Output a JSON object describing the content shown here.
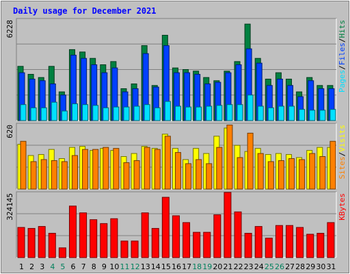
{
  "title": "Daily usage for December 2021",
  "colors": {
    "title": "#0000ff",
    "background": "#c0c0c0",
    "hits": "#008040",
    "files": "#0040ff",
    "pages": "#00e0ff",
    "visits": "#ffff00",
    "sites": "#ff8000",
    "kbytes": "#ff0000",
    "weekend": "#00805c",
    "weekday": "#000000"
  },
  "chart_data": [
    {
      "type": "bar",
      "panel": "hits-files-pages",
      "y_max_label": "6228",
      "ylim": [
        0,
        6228
      ],
      "legend": [
        "Pages",
        "/",
        "Files",
        "/",
        "Hits"
      ],
      "categories": [
        "1",
        "2",
        "3",
        "4",
        "5",
        "6",
        "7",
        "8",
        "9",
        "10",
        "11",
        "12",
        "13",
        "14",
        "15",
        "16",
        "17",
        "18",
        "19",
        "20",
        "21",
        "22",
        "23",
        "24",
        "25",
        "26",
        "27",
        "28",
        "29",
        "30",
        "31"
      ],
      "weekend_days": [
        4,
        5,
        11,
        12,
        18,
        19,
        25,
        26
      ],
      "series": [
        {
          "name": "Hits",
          "values": [
            3400,
            2900,
            2700,
            3400,
            1800,
            4450,
            4300,
            3900,
            3500,
            3700,
            2000,
            2300,
            4700,
            2200,
            5350,
            3300,
            3200,
            3100,
            2700,
            2500,
            3100,
            3700,
            6050,
            3900,
            2600,
            3000,
            2600,
            1800,
            2700,
            2200,
            2200
          ]
        },
        {
          "name": "Files",
          "values": [
            3000,
            2600,
            2500,
            2300,
            1600,
            4100,
            3900,
            3500,
            3000,
            3300,
            1800,
            2000,
            4200,
            2100,
            4700,
            3000,
            3000,
            2900,
            2300,
            2400,
            3000,
            3500,
            4500,
            3600,
            2200,
            2600,
            2200,
            1500,
            2500,
            2000,
            2000
          ]
        },
        {
          "name": "Pages",
          "values": [
            1000,
            800,
            800,
            1150,
            600,
            1050,
            1000,
            950,
            800,
            850,
            850,
            900,
            1000,
            800,
            1200,
            900,
            850,
            850,
            900,
            950,
            1000,
            1000,
            1600,
            900,
            800,
            900,
            900,
            700,
            650,
            650,
            700
          ]
        }
      ]
    },
    {
      "type": "bar",
      "panel": "visits-sites",
      "y_max_label": "620",
      "ylim": [
        0,
        620
      ],
      "legend": [
        "Sites",
        "/",
        "Visits"
      ],
      "categories": [
        "1",
        "2",
        "3",
        "4",
        "5",
        "6",
        "7",
        "8",
        "9",
        "10",
        "11",
        "12",
        "13",
        "14",
        "15",
        "16",
        "17",
        "18",
        "19",
        "20",
        "21",
        "22",
        "23",
        "24",
        "25",
        "26",
        "27",
        "28",
        "29",
        "30",
        "31"
      ],
      "weekend_days": [
        4,
        5,
        11,
        12,
        18,
        19,
        25,
        26
      ],
      "series": [
        {
          "name": "Visits",
          "values": [
            440,
            330,
            340,
            390,
            300,
            410,
            420,
            380,
            400,
            380,
            320,
            350,
            420,
            400,
            540,
            400,
            290,
            400,
            350,
            520,
            600,
            430,
            370,
            400,
            340,
            350,
            340,
            310,
            380,
            410,
            410
          ]
        },
        {
          "name": "Sites",
          "values": [
            470,
            270,
            290,
            280,
            270,
            330,
            390,
            390,
            410,
            400,
            260,
            280,
            410,
            390,
            520,
            360,
            250,
            290,
            250,
            410,
            630,
            310,
            550,
            350,
            270,
            280,
            300,
            290,
            350,
            320,
            470
          ]
        }
      ]
    },
    {
      "type": "bar",
      "panel": "kbytes",
      "y_max_label": "324145",
      "ylim": [
        0,
        324145
      ],
      "legend": [
        "KBytes"
      ],
      "categories": [
        "1",
        "2",
        "3",
        "4",
        "5",
        "6",
        "7",
        "8",
        "9",
        "10",
        "11",
        "12",
        "13",
        "14",
        "15",
        "16",
        "17",
        "18",
        "19",
        "20",
        "21",
        "22",
        "23",
        "24",
        "25",
        "26",
        "27",
        "28",
        "29",
        "30",
        "31"
      ],
      "weekend_days": [
        4,
        5,
        11,
        12,
        18,
        19,
        25,
        26
      ],
      "series": [
        {
          "name": "KBytes",
          "values": [
            155000,
            150000,
            160000,
            125000,
            50000,
            265000,
            230000,
            195000,
            175000,
            200000,
            85000,
            85000,
            230000,
            150000,
            310000,
            215000,
            180000,
            130000,
            130000,
            220000,
            335000,
            235000,
            125000,
            160000,
            100000,
            165000,
            165000,
            155000,
            120000,
            125000,
            180000
          ]
        }
      ]
    }
  ]
}
